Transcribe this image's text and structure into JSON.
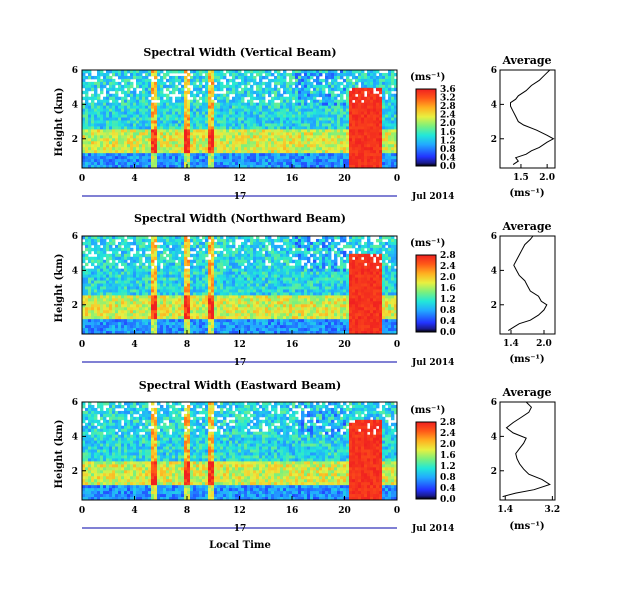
{
  "chart_data": [
    {
      "type": "heatmap",
      "title": "Spectral Width (Vertical Beam)",
      "ylabel": "Height (km)",
      "x_ticks": [
        "0",
        "4",
        "8",
        "12",
        "16",
        "20",
        "0"
      ],
      "y_ticks": [
        "2",
        "4",
        "6"
      ],
      "xlim": [
        0,
        24
      ],
      "ylim": [
        0.3,
        6
      ],
      "date_day": "17",
      "date_label": "Jul 2014",
      "colorbar": {
        "unit": "(ms⁻¹)",
        "ticks": [
          "0.0",
          "0.4",
          "0.8",
          "1.2",
          "1.6",
          "2.0",
          "2.4",
          "2.8",
          "3.2",
          "3.6"
        ]
      },
      "profile": {
        "title": "Average",
        "x_ticks": [
          "1.5",
          "2.0"
        ],
        "y_ticks": [
          "2",
          "4",
          "6"
        ],
        "xlabel": "(ms⁻¹)",
        "xlim": [
          1.1,
          2.15
        ],
        "height": [
          0.5,
          0.7,
          0.9,
          1.1,
          1.3,
          1.5,
          1.8,
          2.0,
          2.2,
          2.5,
          2.8,
          3.0,
          3.3,
          3.6,
          3.9,
          4.1,
          4.3,
          4.5,
          4.8,
          5.1,
          5.4,
          5.7,
          6.0
        ],
        "value": [
          1.35,
          1.45,
          1.4,
          1.6,
          1.7,
          1.85,
          2.0,
          2.12,
          2.0,
          1.8,
          1.55,
          1.45,
          1.4,
          1.35,
          1.3,
          1.3,
          1.4,
          1.45,
          1.6,
          1.7,
          1.85,
          1.95,
          2.05
        ]
      }
    },
    {
      "type": "heatmap",
      "title": "Spectral Width (Northward Beam)",
      "ylabel": "Height (km)",
      "x_ticks": [
        "0",
        "4",
        "8",
        "12",
        "16",
        "20",
        "0"
      ],
      "y_ticks": [
        "2",
        "4",
        "6"
      ],
      "xlim": [
        0,
        24
      ],
      "ylim": [
        0.3,
        6
      ],
      "date_day": "17",
      "date_label": "Jul 2014",
      "colorbar": {
        "unit": "(ms⁻¹)",
        "ticks": [
          "0.0",
          "0.4",
          "0.8",
          "1.2",
          "1.6",
          "2.0",
          "2.4",
          "2.8"
        ]
      },
      "profile": {
        "title": "Average",
        "x_ticks": [
          "1.4",
          "2.0"
        ],
        "y_ticks": [
          "2",
          "4",
          "6"
        ],
        "xlabel": "(ms⁻¹)",
        "xlim": [
          1.2,
          2.2
        ],
        "height": [
          0.5,
          0.7,
          0.9,
          1.1,
          1.4,
          1.7,
          2.0,
          2.2,
          2.5,
          2.8,
          3.1,
          3.4,
          3.7,
          4.0,
          4.3,
          4.6,
          4.9,
          5.2,
          5.5,
          5.8,
          6.0
        ],
        "value": [
          1.35,
          1.45,
          1.55,
          1.75,
          1.9,
          2.0,
          2.05,
          1.95,
          1.9,
          1.75,
          1.7,
          1.65,
          1.55,
          1.5,
          1.45,
          1.5,
          1.55,
          1.6,
          1.65,
          1.75,
          1.8
        ]
      }
    },
    {
      "type": "heatmap",
      "title": "Spectral Width (Eastward Beam)",
      "ylabel": "Height (km)",
      "xlabel": "Local Time",
      "x_ticks": [
        "0",
        "4",
        "8",
        "12",
        "16",
        "20",
        "0"
      ],
      "y_ticks": [
        "2",
        "4",
        "6"
      ],
      "xlim": [
        0,
        24
      ],
      "ylim": [
        0.3,
        6
      ],
      "date_day": "17",
      "date_label": "Jul 2014",
      "colorbar": {
        "unit": "(ms⁻¹)",
        "ticks": [
          "0.0",
          "0.4",
          "0.8",
          "1.2",
          "1.6",
          "2.0",
          "2.4",
          "2.8"
        ]
      },
      "profile": {
        "title": "Average",
        "x_ticks": [
          "1.4",
          "3.2"
        ],
        "y_ticks": [
          "2",
          "4",
          "6"
        ],
        "xlabel": "(ms⁻¹)",
        "xlim": [
          1.2,
          3.3
        ],
        "height": [
          0.5,
          0.7,
          0.9,
          1.2,
          1.5,
          1.8,
          2.1,
          2.4,
          2.7,
          3.0,
          3.3,
          3.6,
          3.9,
          4.2,
          4.5,
          4.8,
          5.1,
          5.4,
          5.7,
          6.0
        ],
        "value": [
          1.3,
          1.8,
          2.5,
          3.1,
          2.8,
          2.3,
          2.1,
          1.95,
          1.85,
          1.8,
          1.95,
          2.1,
          2.2,
          1.7,
          1.45,
          1.7,
          2.0,
          2.3,
          2.4,
          2.2
        ]
      }
    }
  ]
}
